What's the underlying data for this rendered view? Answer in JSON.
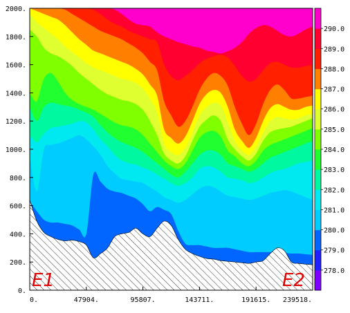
{
  "chart_data": {
    "type": "heatmap",
    "x_ticks": [
      "0.",
      "47904.",
      "95807.",
      "143711.",
      "191615.",
      "239518."
    ],
    "x_range": [
      0,
      239518
    ],
    "y_ticks": [
      "0.",
      "200.",
      "400.",
      "600.",
      "800.",
      "1000.",
      "1200.",
      "1400.",
      "1600.",
      "1800.",
      "2000."
    ],
    "y_range": [
      0,
      2000
    ],
    "colorbar": {
      "labels": [
        "278.0",
        "279.0",
        "280.0",
        "281.0",
        "282.0",
        "283.0",
        "284.0",
        "285.0",
        "286.0",
        "287.0",
        "288.0",
        "289.0",
        "290.0"
      ],
      "colors": [
        "#8000ff",
        "#2020ff",
        "#0066ff",
        "#00ccff",
        "#00e8f0",
        "#00f8a0",
        "#20ff30",
        "#80ff00",
        "#e0ff30",
        "#ffff00",
        "#ff8000",
        "#ff2000",
        "#ff0030",
        "#ff00cc"
      ]
    },
    "terrain_hatched": true,
    "layers": [
      {
        "level": "290",
        "color": "#ff00cc",
        "top": [
          2000,
          2000,
          2000,
          2000,
          2000,
          2000,
          2000,
          2000,
          2000,
          2000,
          2000,
          2000,
          2000,
          2000,
          2000,
          2000,
          2000,
          2000,
          2000,
          2000,
          2000,
          2000,
          2000,
          2000,
          2000,
          2000,
          2000,
          2000,
          2000,
          2000,
          2000,
          2000,
          2000,
          2000,
          2000,
          2000,
          2000,
          2000,
          2000,
          2000,
          2000
        ]
      },
      {
        "level": "289",
        "color": "#ff0030",
        "top": [
          2000,
          2000,
          2000,
          2000,
          2000,
          2000,
          2000,
          2000,
          2000,
          2000,
          2000,
          2000,
          1990,
          1960,
          1920,
          1890,
          1880,
          1870,
          1830,
          1800,
          1780,
          1760,
          1745,
          1730,
          1720,
          1700,
          1690,
          1680,
          1695,
          1720,
          1760,
          1820,
          1860,
          1880,
          1870,
          1840,
          1810,
          1800,
          1820,
          1850,
          1870
        ]
      },
      {
        "level": "288",
        "color": "#ff2000",
        "top": [
          2000,
          2000,
          2000,
          2000,
          2000,
          2000,
          2000,
          2000,
          2000,
          1990,
          1960,
          1920,
          1890,
          1870,
          1840,
          1820,
          1800,
          1780,
          1760,
          1600,
          1520,
          1490,
          1520,
          1560,
          1610,
          1640,
          1660,
          1670,
          1650,
          1590,
          1520,
          1480,
          1500,
          1560,
          1610,
          1620,
          1600,
          1580,
          1580,
          1590,
          1600
        ]
      },
      {
        "level": "287",
        "color": "#ff8000",
        "top": [
          2000,
          2000,
          2000,
          2000,
          2000,
          1990,
          1960,
          1930,
          1900,
          1870,
          1840,
          1820,
          1800,
          1780,
          1750,
          1720,
          1680,
          1620,
          1560,
          1340,
          1240,
          1160,
          1200,
          1300,
          1420,
          1500,
          1540,
          1520,
          1450,
          1300,
          1180,
          1100,
          1180,
          1320,
          1420,
          1460,
          1420,
          1360,
          1360,
          1370,
          1380
        ]
      },
      {
        "level": "286",
        "color": "#ffff00",
        "top": [
          2000,
          1980,
          1960,
          1940,
          1920,
          1880,
          1830,
          1780,
          1740,
          1700,
          1680,
          1660,
          1640,
          1620,
          1600,
          1570,
          1530,
          1460,
          1380,
          1140,
          1080,
          1040,
          1090,
          1200,
          1320,
          1390,
          1420,
          1400,
          1300,
          1140,
          1060,
          1010,
          1080,
          1200,
          1290,
          1320,
          1300,
          1280,
          1280,
          1300,
          1310
        ]
      },
      {
        "level": "285",
        "color": "#e0ff30",
        "top": [
          1960,
          1900,
          1860,
          1820,
          1780,
          1730,
          1690,
          1650,
          1610,
          1580,
          1560,
          1540,
          1520,
          1500,
          1490,
          1470,
          1430,
          1360,
          1260,
          1040,
          980,
          960,
          1010,
          1120,
          1240,
          1300,
          1330,
          1310,
          1190,
          1060,
          990,
          960,
          1020,
          1120,
          1200,
          1230,
          1220,
          1210,
          1220,
          1240,
          1250
        ]
      },
      {
        "level": "284",
        "color": "#80ff00",
        "top": [
          1850,
          1800,
          1720,
          1680,
          1660,
          1630,
          1590,
          1540,
          1500,
          1460,
          1420,
          1390,
          1370,
          1350,
          1340,
          1320,
          1280,
          1200,
          1100,
          970,
          920,
          900,
          950,
          1060,
          1160,
          1210,
          1240,
          1200,
          1070,
          1000,
          950,
          920,
          970,
          1060,
          1120,
          1140,
          1150,
          1160,
          1180,
          1200,
          1220
        ]
      },
      {
        "level": "283",
        "color": "#20ff30",
        "top": [
          1400,
          1340,
          1500,
          1540,
          1480,
          1400,
          1350,
          1320,
          1300,
          1280,
          1250,
          1220,
          1190,
          1170,
          1160,
          1140,
          1100,
          1040,
          980,
          920,
          880,
          860,
          900,
          990,
          1080,
          1120,
          1130,
          1090,
          990,
          950,
          900,
          880,
          920,
          990,
          1030,
          1050,
          1070,
          1090,
          1110,
          1130,
          1150
        ]
      },
      {
        "level": "282",
        "color": "#00f8a0",
        "top": [
          1300,
          1200,
          1300,
          1330,
          1320,
          1310,
          1300,
          1280,
          1260,
          1230,
          1170,
          1120,
          1080,
          1050,
          1030,
          1010,
          980,
          940,
          900,
          860,
          820,
          800,
          840,
          900,
          960,
          990,
          990,
          960,
          900,
          880,
          860,
          840,
          860,
          900,
          940,
          960,
          980,
          1000,
          1020,
          1040,
          1060
        ]
      },
      {
        "level": "281",
        "color": "#00e8f0",
        "top": [
          1100,
          1050,
          1110,
          1150,
          1160,
          1170,
          1180,
          1200,
          1190,
          1140,
          1070,
          1020,
          960,
          920,
          900,
          890,
          870,
          850,
          820,
          790,
          760,
          740,
          760,
          800,
          860,
          880,
          870,
          840,
          800,
          790,
          780,
          760,
          770,
          800,
          830,
          850,
          860,
          880,
          900,
          910,
          920
        ]
      },
      {
        "level": "280",
        "color": "#00ccff",
        "top": [
          950,
          700,
          1000,
          1030,
          1040,
          1060,
          1080,
          1100,
          1070,
          1020,
          960,
          880,
          830,
          790,
          780,
          770,
          760,
          730,
          700,
          660,
          640,
          620,
          640,
          680,
          720,
          740,
          730,
          700,
          670,
          660,
          650,
          640,
          650,
          670,
          690,
          700,
          710,
          700,
          680,
          660,
          640
        ]
      },
      {
        "level": "279",
        "color": "#0066ff",
        "top": [
          630,
          560,
          500,
          480,
          480,
          470,
          460,
          430,
          400,
          820,
          770,
          720,
          700,
          690,
          670,
          650,
          610,
          560,
          590,
          570,
          540,
          420,
          330,
          320,
          320,
          310,
          300,
          300,
          300,
          290,
          280,
          270,
          270,
          270,
          270,
          270,
          265,
          260,
          260,
          255,
          250
        ]
      }
    ],
    "terrain": [
      640,
      490,
      410,
      380,
      360,
      350,
      355,
      345,
      320,
      230,
      260,
      300,
      380,
      400,
      410,
      440,
      400,
      380,
      440,
      490,
      460,
      360,
      290,
      260,
      240,
      225,
      220,
      210,
      205,
      200,
      195,
      190,
      200,
      210,
      260,
      300,
      280,
      200,
      190,
      185,
      180
    ]
  },
  "labels": {
    "left_endpoint": "E1",
    "right_endpoint": "E2"
  }
}
